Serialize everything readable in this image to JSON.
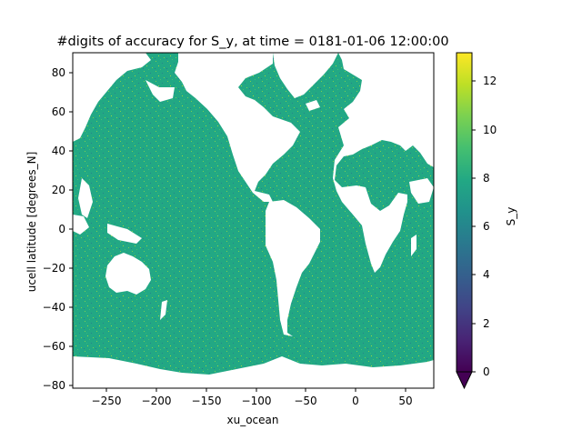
{
  "figure": {
    "title": "#digits of accuracy for S_y, at time = 0181-01-06 12:00:00",
    "xlabel": "xu_ocean",
    "ylabel": "ucell latitude [degrees_N]",
    "x_ticks": [
      "−250",
      "−200",
      "−150",
      "−100",
      "−50",
      "0",
      "50"
    ],
    "y_ticks": [
      "80",
      "60",
      "40",
      "20",
      "0",
      "−20",
      "−40",
      "−60",
      "−80"
    ]
  },
  "colorbar": {
    "label": "S_y",
    "ticks": [
      "0",
      "2",
      "4",
      "6",
      "8",
      "10",
      "12"
    ],
    "extend": "min"
  },
  "chart_data": {
    "type": "heatmap",
    "title": "#digits of accuracy for S_y, at time = 0181-01-06 12:00:00",
    "xlabel": "xu_ocean",
    "ylabel": "ucell latitude [degrees_N]",
    "xlim": [
      -280,
      80
    ],
    "ylim": [
      -81,
      90
    ],
    "colorbar": {
      "label": "S_y",
      "vmin": 0,
      "vmax": 13.2,
      "extend": "min",
      "colormap": "viridis"
    },
    "dominant_value": 7.3,
    "land_value": "NaN (white)",
    "ocean_color": "#22a884",
    "noise_colors": [
      "#7ad151",
      "#26828e",
      "#a0da39"
    ]
  }
}
